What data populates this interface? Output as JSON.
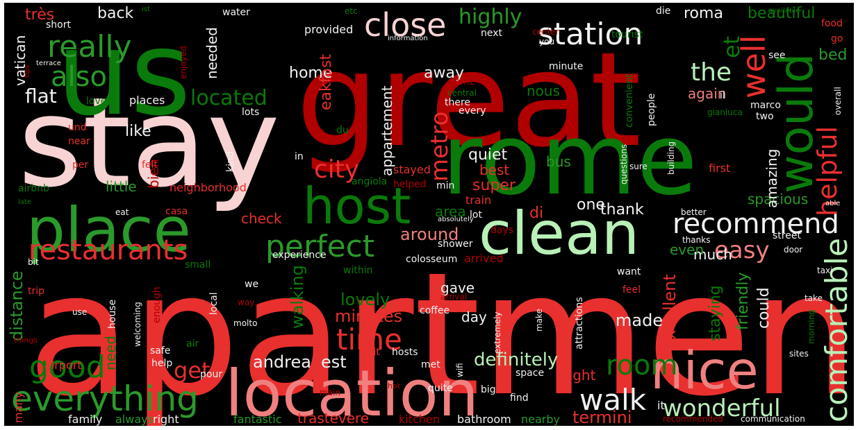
{
  "colors": {
    "background": "#000000",
    "dark_red": "#b00000",
    "red": "#e8302e",
    "salmon": "#f08080",
    "pink": "#f7d3d3",
    "dark_green": "#0a7a0a",
    "green": "#2a9a2a",
    "light_green": "#b8f0b8",
    "white": "#f2f2f2"
  },
  "words": [
    {
      "text": "apartment",
      "color": "red"
    },
    {
      "text": "great",
      "color": "dark_red"
    },
    {
      "text": "stay",
      "color": "pink"
    },
    {
      "text": "rome",
      "color": "dark_green"
    },
    {
      "text": "us",
      "color": "dark_green"
    },
    {
      "text": "location",
      "color": "salmon"
    },
    {
      "text": "clean",
      "color": "light_green"
    },
    {
      "text": "place",
      "color": "green"
    },
    {
      "text": "host",
      "color": "dark_green"
    },
    {
      "text": "nice",
      "color": "salmon"
    },
    {
      "text": "would",
      "color": "dark_green"
    },
    {
      "text": "recommend",
      "color": "white"
    },
    {
      "text": "comfortable",
      "color": "light_green"
    },
    {
      "text": "everything",
      "color": "green"
    },
    {
      "text": "restaurants",
      "color": "red"
    },
    {
      "text": "perfect",
      "color": "green"
    },
    {
      "text": "well",
      "color": "red"
    },
    {
      "text": "really",
      "color": "green"
    },
    {
      "text": "also",
      "color": "green"
    },
    {
      "text": "close",
      "color": "pink"
    },
    {
      "text": "station",
      "color": "white"
    },
    {
      "text": "helpful",
      "color": "red"
    },
    {
      "text": "walk",
      "color": "white"
    },
    {
      "text": "good",
      "color": "dark_green"
    },
    {
      "text": "room",
      "color": "dark_green"
    },
    {
      "text": "time",
      "color": "red"
    },
    {
      "text": "wonderful",
      "color": "light_green"
    },
    {
      "text": "easy",
      "color": "salmon"
    },
    {
      "text": "city",
      "color": "red"
    },
    {
      "text": "metro",
      "color": "red"
    },
    {
      "text": "the",
      "color": "light_green"
    },
    {
      "text": "et",
      "color": "dark_green"
    },
    {
      "text": "highly",
      "color": "green"
    },
    {
      "text": "flat",
      "color": "white"
    },
    {
      "text": "located",
      "color": "dark_green"
    },
    {
      "text": "get",
      "color": "red"
    },
    {
      "text": "definitely",
      "color": "light_green"
    },
    {
      "text": "lovely",
      "color": "dark_green"
    },
    {
      "text": "minutes",
      "color": "red"
    },
    {
      "text": "walking",
      "color": "dark_green"
    },
    {
      "text": "distance",
      "color": "green"
    },
    {
      "text": "andrea",
      "color": "white"
    },
    {
      "text": "est",
      "color": "white"
    },
    {
      "text": "excellent",
      "color": "red"
    },
    {
      "text": "made",
      "color": "white"
    },
    {
      "text": "friendly",
      "color": "green"
    },
    {
      "text": "staying",
      "color": "dark_green"
    },
    {
      "text": "could",
      "color": "white"
    },
    {
      "text": "termini",
      "color": "red"
    },
    {
      "text": "trastevere",
      "color": "red"
    },
    {
      "text": "fantastic",
      "color": "green"
    },
    {
      "text": "kitchen",
      "color": "dark_red"
    },
    {
      "text": "bathroom",
      "color": "white"
    },
    {
      "text": "nearby",
      "color": "green"
    },
    {
      "text": "family",
      "color": "white"
    },
    {
      "text": "always",
      "color": "green"
    },
    {
      "text": "right",
      "color": "white"
    },
    {
      "text": "many",
      "color": "red"
    },
    {
      "text": "beautiful",
      "color": "dark_green"
    },
    {
      "text": "roma",
      "color": "white"
    },
    {
      "text": "bed",
      "color": "green"
    },
    {
      "text": "spacious",
      "color": "green"
    },
    {
      "text": "amazing",
      "color": "white"
    },
    {
      "text": "again",
      "color": "salmon"
    },
    {
      "text": "nous",
      "color": "dark_green"
    },
    {
      "text": "thank",
      "color": "white"
    },
    {
      "text": "one",
      "color": "white"
    },
    {
      "text": "di",
      "color": "red"
    },
    {
      "text": "area",
      "color": "dark_green"
    },
    {
      "text": "around",
      "color": "salmon"
    },
    {
      "text": "much",
      "color": "white"
    },
    {
      "text": "even",
      "color": "green"
    },
    {
      "text": "check",
      "color": "red"
    },
    {
      "text": "little",
      "color": "green"
    },
    {
      "text": "neighborhood",
      "color": "red"
    },
    {
      "text": "airbnb",
      "color": "dark_green"
    },
    {
      "text": "bien",
      "color": "dark_red"
    },
    {
      "text": "like",
      "color": "white"
    },
    {
      "text": "vatican",
      "color": "white"
    },
    {
      "text": "très",
      "color": "red"
    },
    {
      "text": "back",
      "color": "white"
    },
    {
      "text": "home",
      "color": "white"
    },
    {
      "text": "provided",
      "color": "white"
    },
    {
      "text": "needed",
      "color": "white"
    },
    {
      "text": "away",
      "color": "white"
    },
    {
      "text": "eakfast",
      "color": "red"
    },
    {
      "text": "appartement",
      "color": "white"
    },
    {
      "text": "quiet",
      "color": "white"
    },
    {
      "text": "best",
      "color": "red"
    },
    {
      "text": "super",
      "color": "red"
    },
    {
      "text": "bus",
      "color": "green"
    },
    {
      "text": "train",
      "color": "red"
    },
    {
      "text": "stayed",
      "color": "red"
    },
    {
      "text": "helped",
      "color": "dark_red"
    },
    {
      "text": "angiola",
      "color": "dark_green"
    },
    {
      "text": "min",
      "color": "white"
    },
    {
      "text": "lot",
      "color": "white"
    },
    {
      "text": "days",
      "color": "dark_red"
    },
    {
      "text": "arrived",
      "color": "dark_red"
    },
    {
      "text": "colosseum",
      "color": "white"
    },
    {
      "text": "experience",
      "color": "white"
    },
    {
      "text": "within",
      "color": "dark_green"
    },
    {
      "text": "shower",
      "color": "white"
    },
    {
      "text": "gave",
      "color": "white"
    },
    {
      "text": "day",
      "color": "white"
    },
    {
      "text": "need",
      "color": "dark_green"
    },
    {
      "text": "night",
      "color": "red"
    },
    {
      "text": "it",
      "color": "white"
    },
    {
      "text": "small",
      "color": "dark_green"
    },
    {
      "text": "bit",
      "color": "white"
    },
    {
      "text": "trip",
      "color": "red"
    },
    {
      "text": "house",
      "color": "white"
    },
    {
      "text": "welcoming",
      "color": "white"
    },
    {
      "text": "enough",
      "color": "dark_red"
    },
    {
      "text": "local",
      "color": "white"
    },
    {
      "text": "molto",
      "color": "white"
    },
    {
      "text": "we",
      "color": "white"
    },
    {
      "text": "coffee",
      "color": "white"
    },
    {
      "text": "use",
      "color": "white"
    },
    {
      "text": "things",
      "color": "dark_red"
    },
    {
      "text": "air",
      "color": "dark_green"
    },
    {
      "text": "safe",
      "color": "white"
    },
    {
      "text": "help",
      "color": "white"
    },
    {
      "text": "airport",
      "color": "red"
    },
    {
      "text": "pour",
      "color": "white"
    },
    {
      "text": "visit",
      "color": "red"
    },
    {
      "text": "hosts",
      "color": "white"
    },
    {
      "text": "met",
      "color": "white"
    },
    {
      "text": "wifi",
      "color": "white"
    },
    {
      "text": "main",
      "color": "dark_red"
    },
    {
      "text": "hot",
      "color": "dark_red"
    },
    {
      "text": "quite",
      "color": "white"
    },
    {
      "text": "big",
      "color": "white"
    },
    {
      "text": "find",
      "color": "white"
    },
    {
      "text": "space",
      "color": "white"
    },
    {
      "text": "recommended",
      "color": "dark_red"
    },
    {
      "text": "communication",
      "color": "white"
    },
    {
      "text": "sites",
      "color": "white"
    },
    {
      "text": "morning",
      "color": "dark_green"
    },
    {
      "text": "take",
      "color": "white"
    },
    {
      "text": "taxi",
      "color": "white"
    },
    {
      "text": "door",
      "color": "white"
    },
    {
      "text": "street",
      "color": "white"
    },
    {
      "text": "want",
      "color": "white"
    },
    {
      "text": "feel",
      "color": "red"
    },
    {
      "text": "arrival",
      "color": "dark_red"
    },
    {
      "text": "attractions",
      "color": "white"
    },
    {
      "text": "make",
      "color": "white"
    },
    {
      "text": "extremely",
      "color": "white"
    },
    {
      "text": "way",
      "color": "dark_red"
    },
    {
      "text": "thanks",
      "color": "white"
    },
    {
      "text": "better",
      "color": "white"
    },
    {
      "text": "able",
      "color": "white"
    },
    {
      "text": "first",
      "color": "red"
    },
    {
      "text": "building",
      "color": "white"
    },
    {
      "text": "questions",
      "color": "white"
    },
    {
      "text": "sure",
      "color": "white"
    },
    {
      "text": "absolutely",
      "color": "white"
    },
    {
      "text": "casa",
      "color": "red"
    },
    {
      "text": "eat",
      "color": "white"
    },
    {
      "text": "late",
      "color": "dark_green"
    },
    {
      "text": "kind",
      "color": "white"
    },
    {
      "text": "felt",
      "color": "red"
    },
    {
      "text": "per",
      "color": "red"
    },
    {
      "text": "near",
      "color": "red"
    },
    {
      "text": "und",
      "color": "red"
    },
    {
      "text": "du",
      "color": "dark_green"
    },
    {
      "text": "in",
      "color": "white"
    },
    {
      "text": "loved",
      "color": "dark_green"
    },
    {
      "text": "places",
      "color": "white"
    },
    {
      "text": "lots",
      "color": "white"
    },
    {
      "text": "there",
      "color": "white"
    },
    {
      "text": "every",
      "color": "white"
    },
    {
      "text": "come",
      "color": "dark_red"
    },
    {
      "text": "central",
      "color": "dark_green"
    },
    {
      "text": "minute",
      "color": "white"
    },
    {
      "text": "next",
      "color": "white"
    },
    {
      "text": "you",
      "color": "white"
    },
    {
      "text": "center",
      "color": "dark_red"
    },
    {
      "text": "convenient",
      "color": "dark_green"
    },
    {
      "text": "people",
      "color": "white"
    },
    {
      "text": "il",
      "color": "white"
    },
    {
      "text": "marco",
      "color": "white"
    },
    {
      "text": "gianluca",
      "color": "dark_green"
    },
    {
      "text": "two",
      "color": "white"
    },
    {
      "text": "overall",
      "color": "white"
    },
    {
      "text": "see",
      "color": "white"
    },
    {
      "text": "go",
      "color": "red"
    },
    {
      "text": "food",
      "color": "red"
    },
    {
      "text": "tourist",
      "color": "dark_green"
    },
    {
      "text": "die",
      "color": "white"
    },
    {
      "text": "information",
      "color": "white"
    },
    {
      "text": "etc",
      "color": "dark_green"
    },
    {
      "text": "ist",
      "color": "dark_green"
    },
    {
      "text": "water",
      "color": "white"
    },
    {
      "text": "enjoyed",
      "color": "dark_red"
    },
    {
      "text": "terrace",
      "color": "white"
    },
    {
      "text": "short",
      "color": "white"
    },
    {
      "text": "tips",
      "color": "dark_red"
    },
    {
      "text": "available",
      "color": "dark_green"
    }
  ]
}
